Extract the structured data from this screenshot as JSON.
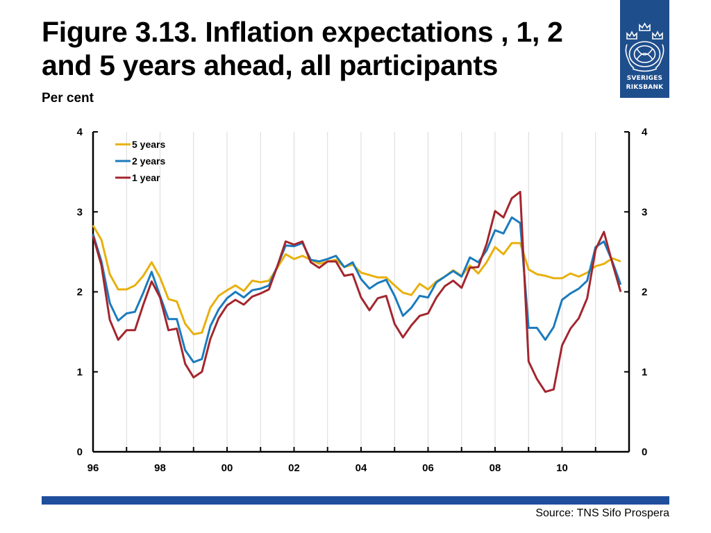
{
  "title": "Figure 3.13. Inflation expectations , 1, 2 and 5 years ahead, all participants",
  "subtitle": "Per cent",
  "logo": {
    "line1": "SVERIGES",
    "line2": "RIKSBANK",
    "bg_color": "#1f4e8c"
  },
  "source": "Source: TNS Sifo Prospera",
  "footer_color": "#1f4e9c",
  "chart_data": {
    "type": "line",
    "x_start": 1996.0,
    "x_step": 0.25,
    "xlim": [
      1996,
      2012
    ],
    "ylim": [
      0,
      4
    ],
    "yticks": [
      0,
      1,
      2,
      3,
      4
    ],
    "x_ticks": [
      {
        "x": 1996,
        "label": "96"
      },
      {
        "x": 1998,
        "label": "98"
      },
      {
        "x": 2000,
        "label": "00"
      },
      {
        "x": 2002,
        "label": "02"
      },
      {
        "x": 2004,
        "label": "04"
      },
      {
        "x": 2006,
        "label": "06"
      },
      {
        "x": 2008,
        "label": "08"
      },
      {
        "x": 2010,
        "label": "10"
      }
    ],
    "grid": "vertical",
    "legend": "top-left",
    "series": [
      {
        "name": "5 years",
        "color": "#e8b00e",
        "values": [
          2.83,
          2.65,
          2.22,
          2.03,
          2.03,
          2.08,
          2.2,
          2.37,
          2.18,
          1.91,
          1.88,
          1.6,
          1.47,
          1.49,
          1.8,
          1.95,
          2.02,
          2.08,
          2.01,
          2.14,
          2.12,
          2.14,
          2.3,
          2.47,
          2.41,
          2.45,
          2.4,
          2.35,
          2.38,
          2.4,
          2.31,
          2.34,
          2.24,
          2.21,
          2.18,
          2.18,
          2.08,
          1.99,
          1.96,
          2.1,
          2.03,
          2.13,
          2.19,
          2.27,
          2.2,
          2.33,
          2.23,
          2.37,
          2.56,
          2.47,
          2.61,
          2.61,
          2.28,
          2.22,
          2.2,
          2.17,
          2.17,
          2.23,
          2.19,
          2.24,
          2.32,
          2.35,
          2.42,
          2.38
        ]
      },
      {
        "name": "2 years",
        "color": "#1a7bbd",
        "values": [
          2.72,
          2.38,
          1.86,
          1.64,
          1.73,
          1.75,
          1.99,
          2.25,
          1.95,
          1.66,
          1.66,
          1.27,
          1.12,
          1.16,
          1.57,
          1.78,
          1.92,
          2.0,
          1.93,
          2.02,
          2.04,
          2.08,
          2.32,
          2.58,
          2.57,
          2.61,
          2.4,
          2.38,
          2.41,
          2.45,
          2.31,
          2.37,
          2.16,
          2.04,
          2.11,
          2.15,
          1.95,
          1.7,
          1.8,
          1.95,
          1.93,
          2.12,
          2.19,
          2.26,
          2.19,
          2.43,
          2.37,
          2.52,
          2.77,
          2.73,
          2.93,
          2.86,
          1.55,
          1.55,
          1.4,
          1.56,
          1.9,
          1.98,
          2.04,
          2.14,
          2.56,
          2.63,
          2.38,
          2.09
        ]
      },
      {
        "name": "1 year",
        "color": "#a3262e",
        "values": [
          2.7,
          2.33,
          1.65,
          1.4,
          1.52,
          1.52,
          1.84,
          2.13,
          1.93,
          1.52,
          1.54,
          1.1,
          0.93,
          1.0,
          1.41,
          1.67,
          1.83,
          1.9,
          1.84,
          1.94,
          1.98,
          2.03,
          2.32,
          2.63,
          2.59,
          2.63,
          2.37,
          2.3,
          2.38,
          2.38,
          2.2,
          2.22,
          1.93,
          1.77,
          1.92,
          1.95,
          1.6,
          1.43,
          1.58,
          1.7,
          1.73,
          1.93,
          2.07,
          2.14,
          2.05,
          2.3,
          2.31,
          2.6,
          3.01,
          2.93,
          3.17,
          3.25,
          1.13,
          0.91,
          0.75,
          0.78,
          1.33,
          1.54,
          1.67,
          1.92,
          2.53,
          2.75,
          2.36,
          2.0
        ]
      }
    ]
  }
}
